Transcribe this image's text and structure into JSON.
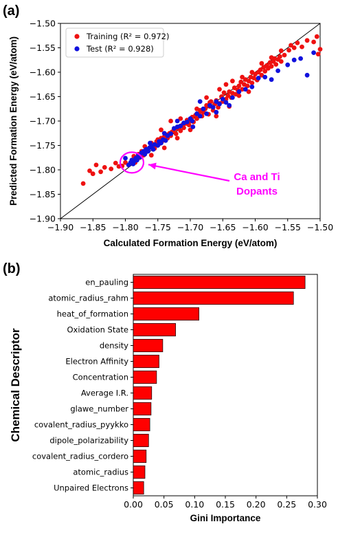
{
  "chart_data": [
    {
      "panel_label": "(a)",
      "type": "scatter",
      "xlabel": "Calculated Formation Energy (eV/atom)",
      "ylabel": "Predicted Formation Energy (eV/atom)",
      "xlim": [
        -1.9,
        -1.5
      ],
      "ylim": [
        -1.9,
        -1.5
      ],
      "x_ticks": [
        "−1.90",
        "−1.85",
        "−1.80",
        "−1.75",
        "−1.70",
        "−1.65",
        "−1.60",
        "−1.55",
        "−1.50"
      ],
      "y_ticks": [
        "−1.50",
        "−1.55",
        "−1.60",
        "−1.65",
        "−1.70",
        "−1.75",
        "−1.80",
        "−1.85",
        "−1.90"
      ],
      "x_tick_values": [
        -1.9,
        -1.85,
        -1.8,
        -1.75,
        -1.7,
        -1.65,
        -1.6,
        -1.55,
        -1.5
      ],
      "y_tick_values": [
        -1.5,
        -1.55,
        -1.6,
        -1.65,
        -1.7,
        -1.75,
        -1.8,
        -1.85,
        -1.9
      ],
      "legend_position": "top-left",
      "parity_line": true,
      "annotation": {
        "line1": "Ca and Ti",
        "line2": "Dopants",
        "color": "#ff00ff",
        "target": [
          -1.79,
          -1.785
        ]
      },
      "series": [
        {
          "name": "Training (R² = 0.972)",
          "color": "#ee1111",
          "points": [
            [
              -1.865,
              -1.828
            ],
            [
              -1.855,
              -1.802
            ],
            [
              -1.85,
              -1.808
            ],
            [
              -1.845,
              -1.79
            ],
            [
              -1.838,
              -1.804
            ],
            [
              -1.832,
              -1.795
            ],
            [
              -1.822,
              -1.798
            ],
            [
              -1.815,
              -1.786
            ],
            [
              -1.81,
              -1.793
            ],
            [
              -1.805,
              -1.792
            ],
            [
              -1.8,
              -1.785
            ],
            [
              -1.795,
              -1.79
            ],
            [
              -1.79,
              -1.78
            ],
            [
              -1.787,
              -1.772
            ],
            [
              -1.785,
              -1.785
            ],
            [
              -1.78,
              -1.768
            ],
            [
              -1.778,
              -1.775
            ],
            [
              -1.775,
              -1.762
            ],
            [
              -1.772,
              -1.77
            ],
            [
              -1.77,
              -1.752
            ],
            [
              -1.768,
              -1.76
            ],
            [
              -1.765,
              -1.758
            ],
            [
              -1.762,
              -1.754
            ],
            [
              -1.76,
              -1.745
            ],
            [
              -1.757,
              -1.748
            ],
            [
              -1.755,
              -1.756
            ],
            [
              -1.752,
              -1.742
            ],
            [
              -1.75,
              -1.738
            ],
            [
              -1.747,
              -1.746
            ],
            [
              -1.745,
              -1.735
            ],
            [
              -1.742,
              -1.74
            ],
            [
              -1.74,
              -1.732
            ],
            [
              -1.737,
              -1.728
            ],
            [
              -1.735,
              -1.735
            ],
            [
              -1.732,
              -1.725
            ],
            [
              -1.73,
              -1.73
            ],
            [
              -1.728,
              -1.722
            ],
            [
              -1.725,
              -1.718
            ],
            [
              -1.722,
              -1.726
            ],
            [
              -1.72,
              -1.715
            ],
            [
              -1.718,
              -1.712
            ],
            [
              -1.715,
              -1.72
            ],
            [
              -1.712,
              -1.708
            ],
            [
              -1.71,
              -1.714
            ],
            [
              -1.707,
              -1.705
            ],
            [
              -1.705,
              -1.698
            ],
            [
              -1.702,
              -1.708
            ],
            [
              -1.7,
              -1.7
            ],
            [
              -1.697,
              -1.692
            ],
            [
              -1.695,
              -1.702
            ],
            [
              -1.692,
              -1.688
            ],
            [
              -1.69,
              -1.695
            ],
            [
              -1.687,
              -1.685
            ],
            [
              -1.685,
              -1.678
            ],
            [
              -1.682,
              -1.69
            ],
            [
              -1.68,
              -1.682
            ],
            [
              -1.677,
              -1.675
            ],
            [
              -1.675,
              -1.668
            ],
            [
              -1.672,
              -1.686
            ],
            [
              -1.67,
              -1.67
            ],
            [
              -1.668,
              -1.66
            ],
            [
              -1.665,
              -1.678
            ],
            [
              -1.662,
              -1.665
            ],
            [
              -1.66,
              -1.658
            ],
            [
              -1.657,
              -1.672
            ],
            [
              -1.655,
              -1.664
            ],
            [
              -1.652,
              -1.65
            ],
            [
              -1.65,
              -1.66
            ],
            [
              -1.648,
              -1.642
            ],
            [
              -1.645,
              -1.655
            ],
            [
              -1.642,
              -1.648
            ],
            [
              -1.64,
              -1.64
            ],
            [
              -1.637,
              -1.652
            ],
            [
              -1.635,
              -1.643
            ],
            [
              -1.632,
              -1.632
            ],
            [
              -1.63,
              -1.645
            ],
            [
              -1.627,
              -1.636
            ],
            [
              -1.625,
              -1.628
            ],
            [
              -1.622,
              -1.62
            ],
            [
              -1.62,
              -1.635
            ],
            [
              -1.617,
              -1.625
            ],
            [
              -1.615,
              -1.615
            ],
            [
              -1.612,
              -1.628
            ],
            [
              -1.61,
              -1.618
            ],
            [
              -1.607,
              -1.61
            ],
            [
              -1.605,
              -1.622
            ],
            [
              -1.602,
              -1.612
            ],
            [
              -1.6,
              -1.604
            ],
            [
              -1.597,
              -1.616
            ],
            [
              -1.595,
              -1.6
            ],
            [
              -1.592,
              -1.595
            ],
            [
              -1.59,
              -1.606
            ],
            [
              -1.587,
              -1.59
            ],
            [
              -1.585,
              -1.598
            ],
            [
              -1.582,
              -1.586
            ],
            [
              -1.58,
              -1.592
            ],
            [
              -1.577,
              -1.58
            ],
            [
              -1.575,
              -1.588
            ],
            [
              -1.572,
              -1.578
            ],
            [
              -1.57,
              -1.572
            ],
            [
              -1.568,
              -1.584
            ],
            [
              -1.565,
              -1.574
            ],
            [
              -1.562,
              -1.568
            ],
            [
              -1.56,
              -1.578
            ],
            [
              -1.555,
              -1.565
            ],
            [
              -1.548,
              -1.555
            ],
            [
              -1.54,
              -1.55
            ],
            [
              -1.535,
              -1.54
            ],
            [
              -1.528,
              -1.548
            ],
            [
              -1.52,
              -1.535
            ],
            [
              -1.51,
              -1.538
            ],
            [
              -1.505,
              -1.527
            ],
            [
              -1.503,
              -1.563
            ],
            [
              -1.5,
              -1.553
            ],
            [
              -1.67,
              -1.662
            ],
            [
              -1.66,
              -1.69
            ],
            [
              -1.64,
              -1.67
            ],
            [
              -1.625,
              -1.648
            ],
            [
              -1.61,
              -1.64
            ],
            [
              -1.7,
              -1.718
            ],
            [
              -1.72,
              -1.735
            ],
            [
              -1.74,
              -1.755
            ],
            [
              -1.76,
              -1.77
            ],
            [
              -1.745,
              -1.718
            ],
            [
              -1.73,
              -1.7
            ],
            [
              -1.715,
              -1.695
            ],
            [
              -1.69,
              -1.675
            ],
            [
              -1.675,
              -1.652
            ],
            [
              -1.655,
              -1.635
            ],
            [
              -1.645,
              -1.625
            ],
            [
              -1.635,
              -1.618
            ],
            [
              -1.62,
              -1.61
            ],
            [
              -1.605,
              -1.6
            ],
            [
              -1.59,
              -1.582
            ],
            [
              -1.575,
              -1.57
            ],
            [
              -1.56,
              -1.556
            ],
            [
              -1.545,
              -1.545
            ]
          ]
        },
        {
          "name": "Test (R² = 0.928)",
          "color": "#1111dd",
          "points": [
            [
              -1.8,
              -1.776
            ],
            [
              -1.795,
              -1.79
            ],
            [
              -1.792,
              -1.785
            ],
            [
              -1.79,
              -1.78
            ],
            [
              -1.788,
              -1.788
            ],
            [
              -1.786,
              -1.782
            ],
            [
              -1.784,
              -1.776
            ],
            [
              -1.782,
              -1.78
            ],
            [
              -1.78,
              -1.77
            ],
            [
              -1.777,
              -1.774
            ],
            [
              -1.775,
              -1.765
            ],
            [
              -1.772,
              -1.762
            ],
            [
              -1.77,
              -1.768
            ],
            [
              -1.768,
              -1.758
            ],
            [
              -1.765,
              -1.762
            ],
            [
              -1.763,
              -1.755
            ],
            [
              -1.76,
              -1.752
            ],
            [
              -1.757,
              -1.758
            ],
            [
              -1.755,
              -1.748
            ],
            [
              -1.75,
              -1.75
            ],
            [
              -1.748,
              -1.742
            ],
            [
              -1.745,
              -1.745
            ],
            [
              -1.742,
              -1.738
            ],
            [
              -1.738,
              -1.74
            ],
            [
              -1.735,
              -1.73
            ],
            [
              -1.73,
              -1.726
            ],
            [
              -1.725,
              -1.715
            ],
            [
              -1.72,
              -1.712
            ],
            [
              -1.715,
              -1.71
            ],
            [
              -1.71,
              -1.704
            ],
            [
              -1.705,
              -1.702
            ],
            [
              -1.7,
              -1.695
            ],
            [
              -1.697,
              -1.7
            ],
            [
              -1.69,
              -1.685
            ],
            [
              -1.685,
              -1.69
            ],
            [
              -1.68,
              -1.675
            ],
            [
              -1.675,
              -1.685
            ],
            [
              -1.67,
              -1.668
            ],
            [
              -1.665,
              -1.672
            ],
            [
              -1.66,
              -1.66
            ],
            [
              -1.655,
              -1.665
            ],
            [
              -1.65,
              -1.655
            ],
            [
              -1.645,
              -1.662
            ],
            [
              -1.635,
              -1.652
            ],
            [
              -1.625,
              -1.64
            ],
            [
              -1.615,
              -1.635
            ],
            [
              -1.605,
              -1.63
            ],
            [
              -1.595,
              -1.612
            ],
            [
              -1.585,
              -1.61
            ],
            [
              -1.575,
              -1.615
            ],
            [
              -1.565,
              -1.597
            ],
            [
              -1.55,
              -1.585
            ],
            [
              -1.54,
              -1.575
            ],
            [
              -1.53,
              -1.572
            ],
            [
              -1.52,
              -1.606
            ],
            [
              -1.51,
              -1.56
            ],
            [
              -1.74,
              -1.725
            ],
            [
              -1.72,
              -1.7
            ],
            [
              -1.66,
              -1.682
            ],
            [
              -1.64,
              -1.668
            ],
            [
              -1.685,
              -1.66
            ],
            [
              -1.762,
              -1.745
            ],
            [
              -1.696,
              -1.712
            ]
          ]
        }
      ]
    },
    {
      "panel_label": "(b)",
      "type": "bar",
      "orientation": "horizontal",
      "xlabel": "Gini Importance",
      "ylabel": "Chemical Descriptor",
      "xlim": [
        0,
        0.3
      ],
      "x_ticks": [
        "0.00",
        "0.05",
        "0.10",
        "0.15",
        "0.20",
        "0.25",
        "0.30"
      ],
      "x_tick_values": [
        0,
        0.05,
        0.1,
        0.15,
        0.2,
        0.25,
        0.3
      ],
      "bar_color": "#ff0000",
      "categories": [
        "en_pauling",
        "atomic_radius_rahm",
        "heat_of_formation",
        "Oxidation State",
        "density",
        "Electron Affinity",
        "Concentration",
        "Average I.R.",
        "glawe_number",
        "covalent_radius_pyykko",
        "dipole_polarizability",
        "covalent_radius_cordero",
        "atomic_radius",
        "Unpaired Electrons"
      ],
      "values": [
        0.28,
        0.261,
        0.107,
        0.069,
        0.048,
        0.042,
        0.038,
        0.03,
        0.029,
        0.027,
        0.025,
        0.021,
        0.019,
        0.017
      ]
    }
  ]
}
